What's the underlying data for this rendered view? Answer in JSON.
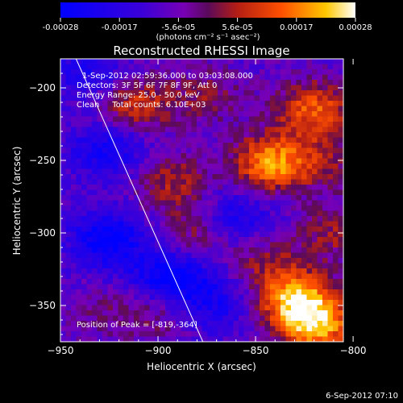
{
  "colorbar": {
    "ticks": [
      "-0.00028",
      "-0.00017",
      "-5.6e-05",
      "5.6e-05",
      "0.00017",
      "0.00028"
    ],
    "unit_label": "(photons cm⁻² s⁻¹ asec⁻²)"
  },
  "chart_data": {
    "type": "heatmap",
    "title": "Reconstructed RHESSI Image",
    "xlabel": "Heliocentric X (arcsec)",
    "ylabel": "Heliocentric Y (arcsec)",
    "xlim": [
      -950,
      -805
    ],
    "ylim": [
      -375,
      -180
    ],
    "xticks": [
      -950,
      -900,
      -850,
      -800
    ],
    "yticks": [
      -200,
      -250,
      -300,
      -350
    ],
    "xtick_labels": [
      "−950",
      "−900",
      "−850",
      "−800"
    ],
    "ytick_labels": [
      "−200",
      "−250",
      "−300",
      "−350"
    ],
    "value_range": [
      -0.00028,
      0.00028
    ],
    "info_lines": [
      "1-Sep-2012 02:59:36.000 to 03:03:08.000",
      "Detectors: 3F 5F 6F 7F 8F 9F, Att 0",
      "Energy Range: 25.0 - 50.0 keV",
      "Clean     Total counts: 6.10E+03"
    ],
    "peak_label": "Position of Peak = [-819,-364]",
    "peak": [
      -819,
      -364
    ],
    "limb_line": [
      [
        -942,
        -180
      ],
      [
        -877,
        -375
      ]
    ],
    "hotspots": [
      {
        "x": -842,
        "y": -252,
        "value": 0.00028
      },
      {
        "x": -830,
        "y": -345,
        "value": 0.00028
      },
      {
        "x": -819,
        "y": -364,
        "value": 0.00028
      },
      {
        "x": -820,
        "y": -215,
        "value": 0.00022
      },
      {
        "x": -912,
        "y": -212,
        "value": 0.00018
      },
      {
        "x": -893,
        "y": -265,
        "value": 0.00014
      },
      {
        "x": -880,
        "y": -300,
        "value": 0.00012
      },
      {
        "x": -810,
        "y": -300,
        "value": 0.00012
      },
      {
        "x": -900,
        "y": -355,
        "value": 0.0001
      },
      {
        "x": -845,
        "y": -318,
        "value": 0.0001
      },
      {
        "x": -812,
        "y": -252,
        "value": 0.0001
      },
      {
        "x": -875,
        "y": -205,
        "value": 0.0001
      },
      {
        "x": -930,
        "y": -355,
        "value": 6e-05
      }
    ],
    "coldspots": [
      {
        "x": -925,
        "y": -305,
        "value": -0.0002
      },
      {
        "x": -893,
        "y": -332,
        "value": -0.00022
      },
      {
        "x": -925,
        "y": -242,
        "value": -0.00016
      },
      {
        "x": -860,
        "y": -290,
        "value": -0.00014
      },
      {
        "x": -870,
        "y": -350,
        "value": -0.00012
      },
      {
        "x": -935,
        "y": -190,
        "value": -0.00012
      }
    ]
  },
  "footer": {
    "date": "6-Sep-2012 07:10"
  }
}
